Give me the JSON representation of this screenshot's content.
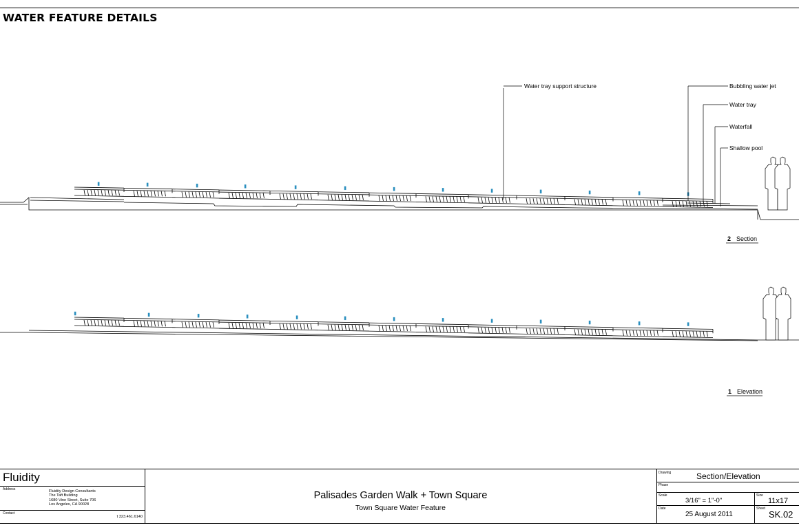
{
  "sheet": {
    "heading": "WATER FEATURE DETAILS"
  },
  "callouts": {
    "support": "Water tray support structure",
    "jet": "Bubbling water jet",
    "tray": "Water tray",
    "waterfall": "Waterfall",
    "pool": "Shallow pool"
  },
  "views": {
    "section": {
      "number": "2",
      "title": "Section"
    },
    "elevation": {
      "number": "1",
      "title": "Elevation"
    }
  },
  "title_block": {
    "firm": "Fluidity",
    "address_label": "Address",
    "address_lines": [
      "Fluidity Design Consultants",
      "The Taft Building",
      "1680 Vine Street, Suite 706",
      "Los Angeles, CA 90028"
    ],
    "contact_label": "Contact",
    "phone": "t 323.461.6140",
    "project": "Palisades Garden Walk + Town Square",
    "subtitle": "Town Square Water Feature",
    "drawing_label": "Drawing",
    "drawing": "Section/Elevation",
    "phase_label": "Phase",
    "scale_label": "Scale",
    "scale": "3/16\" = 1\"-0\"",
    "size_label": "Size",
    "size": "11x17",
    "date_label": "Date",
    "date": "25 August 2011",
    "sheet_label": "Sheet",
    "sheet": "SK.02"
  },
  "colors": {
    "ink": "#000000",
    "jet": "#2a8fbf"
  }
}
